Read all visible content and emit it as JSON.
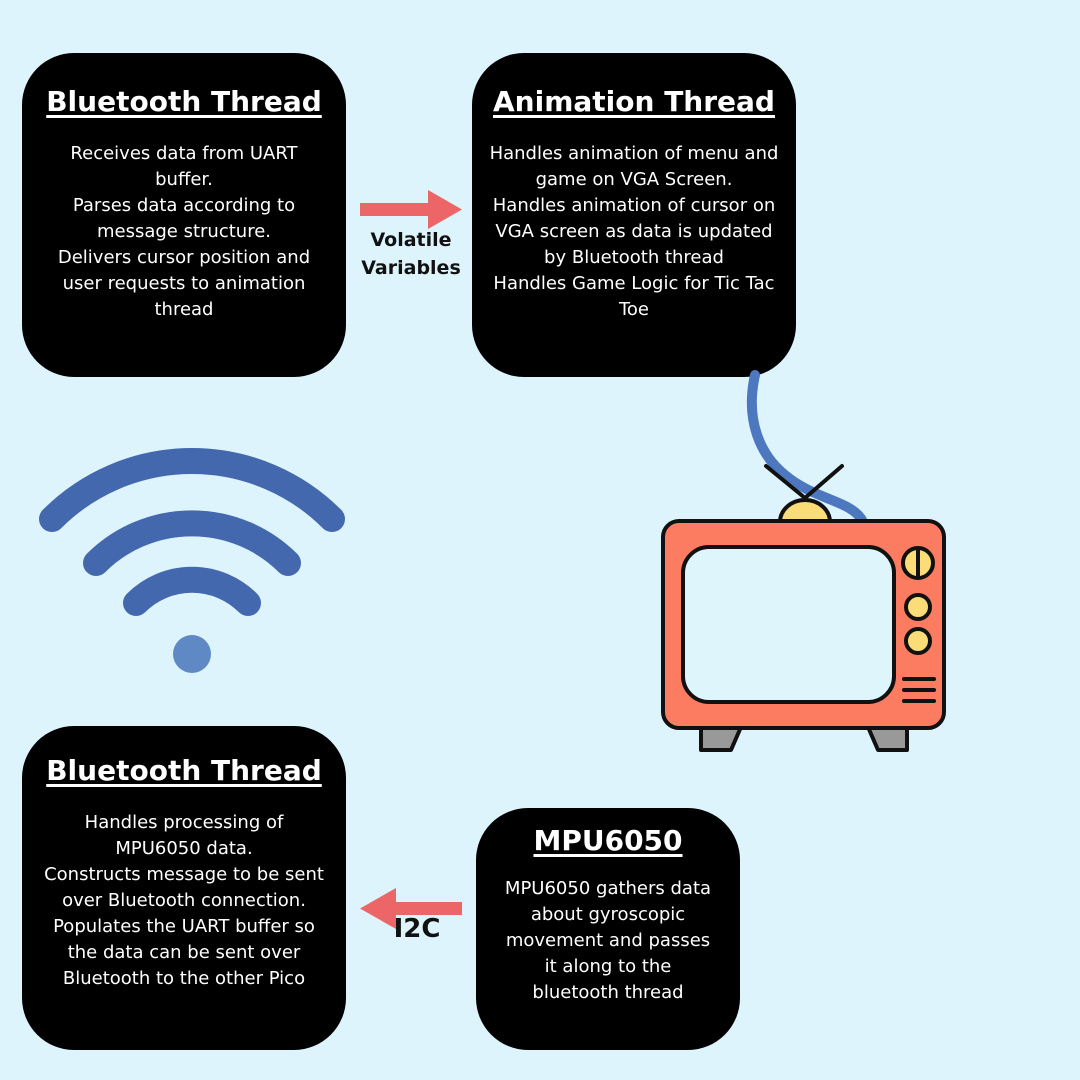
{
  "cards": {
    "bluetooth_top": {
      "title": "Bluetooth Thread",
      "lines": [
        "Receives data from UART",
        "buffer.",
        "Parses data according to",
        "message structure.",
        "Delivers cursor position and",
        "user requests to animation",
        "thread"
      ]
    },
    "animation": {
      "title": "Animation Thread",
      "lines": [
        "Handles animation of menu and",
        "game on VGA Screen.",
        "Handles animation of cursor on",
        "VGA screen as data is updated",
        "by Bluetooth thread",
        "Handles Game Logic for Tic Tac",
        "Toe"
      ]
    },
    "bluetooth_bottom": {
      "title": "Bluetooth Thread",
      "lines": [
        "Handles processing of",
        "MPU6050 data.",
        "Constructs message to be sent",
        "over Bluetooth connection.",
        "Populates the UART buffer so",
        "the data can be sent over",
        "Bluetooth to the other Pico"
      ]
    },
    "mpu": {
      "title": "MPU6050",
      "lines": [
        "MPU6050 gathers data",
        "about gyroscopic",
        "movement and passes",
        "it along to the",
        "bluetooth thread"
      ]
    }
  },
  "arrows": {
    "top_label_line1": "Volatile",
    "top_label_line2": "Variables",
    "bottom_label": "I2C"
  },
  "colors": {
    "background": "#ddf4fc",
    "arrow": "#ec6567",
    "wifi": "#4468ae",
    "tv_body": "#fb7c60",
    "tv_screen": "#dff5fc",
    "tv_knob": "#fbdd77",
    "cable": "#4d78c0"
  },
  "icons": [
    "wifi-icon",
    "tv-icon"
  ]
}
